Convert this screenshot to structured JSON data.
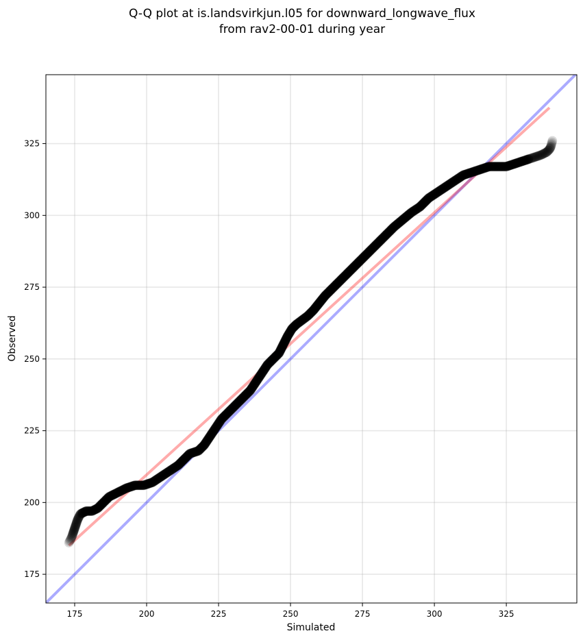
{
  "chart_data": {
    "type": "scatter",
    "title": [
      "Q-Q plot at is.landsvirkjun.l05 for downward_longwave_flux",
      "from rav2-00-01 during year"
    ],
    "xlabel": "Simulated",
    "ylabel": "Observed",
    "xlim": [
      165,
      349.5
    ],
    "ylim": [
      165,
      349
    ],
    "x_ticks": [
      175,
      200,
      225,
      250,
      275,
      300,
      325
    ],
    "y_ticks": [
      175,
      200,
      225,
      250,
      275,
      300,
      325
    ],
    "grid": true,
    "series": [
      {
        "marker": "circle",
        "color": "#000000",
        "points": [
          [
            173,
            186
          ],
          [
            174,
            188
          ],
          [
            175,
            191
          ],
          [
            176,
            194
          ],
          [
            177,
            196
          ],
          [
            179,
            197
          ],
          [
            181,
            197
          ],
          [
            183,
            198
          ],
          [
            185,
            200
          ],
          [
            187,
            202
          ],
          [
            190,
            203.5
          ],
          [
            193,
            205
          ],
          [
            196,
            206
          ],
          [
            199,
            206
          ],
          [
            202,
            207
          ],
          [
            205,
            209
          ],
          [
            208,
            211
          ],
          [
            211,
            213
          ],
          [
            213,
            215
          ],
          [
            215,
            217
          ],
          [
            218,
            218
          ],
          [
            220,
            220
          ],
          [
            222,
            223
          ],
          [
            224,
            226
          ],
          [
            226,
            229
          ],
          [
            228,
            231
          ],
          [
            230,
            233
          ],
          [
            232,
            235
          ],
          [
            234,
            237
          ],
          [
            236,
            239
          ],
          [
            238,
            242
          ],
          [
            240,
            245
          ],
          [
            242,
            248
          ],
          [
            244,
            250
          ],
          [
            246,
            252
          ],
          [
            247.5,
            255
          ],
          [
            249,
            258
          ],
          [
            250.5,
            260.5
          ],
          [
            252,
            262
          ],
          [
            254,
            263.5
          ],
          [
            256,
            265
          ],
          [
            258,
            267
          ],
          [
            260,
            269.5
          ],
          [
            262,
            272
          ],
          [
            265,
            275
          ],
          [
            268,
            278
          ],
          [
            271,
            281
          ],
          [
            274,
            284
          ],
          [
            277,
            287
          ],
          [
            280,
            290
          ],
          [
            283,
            293
          ],
          [
            286,
            296
          ],
          [
            289,
            298.5
          ],
          [
            292,
            301
          ],
          [
            295,
            303
          ],
          [
            298,
            306
          ],
          [
            301,
            308
          ],
          [
            304,
            310
          ],
          [
            307,
            312
          ],
          [
            310,
            314
          ],
          [
            313,
            315
          ],
          [
            316,
            316
          ],
          [
            319,
            317
          ],
          [
            322,
            317
          ],
          [
            325,
            317
          ],
          [
            328,
            318
          ],
          [
            331,
            319
          ],
          [
            334,
            320
          ],
          [
            337,
            321
          ],
          [
            339,
            322
          ],
          [
            340,
            323
          ],
          [
            340.5,
            324
          ],
          [
            341,
            326
          ]
        ]
      }
    ],
    "reference_lines": [
      {
        "name": "1:1",
        "color": "#0000ff",
        "alpha": 0.33,
        "x": [
          165,
          349.5
        ],
        "y": [
          165,
          349.5
        ]
      },
      {
        "name": "fit",
        "color": "#ff0000",
        "alpha": 0.33,
        "x": [
          173,
          340
        ],
        "y": [
          185,
          337.5
        ]
      }
    ]
  }
}
